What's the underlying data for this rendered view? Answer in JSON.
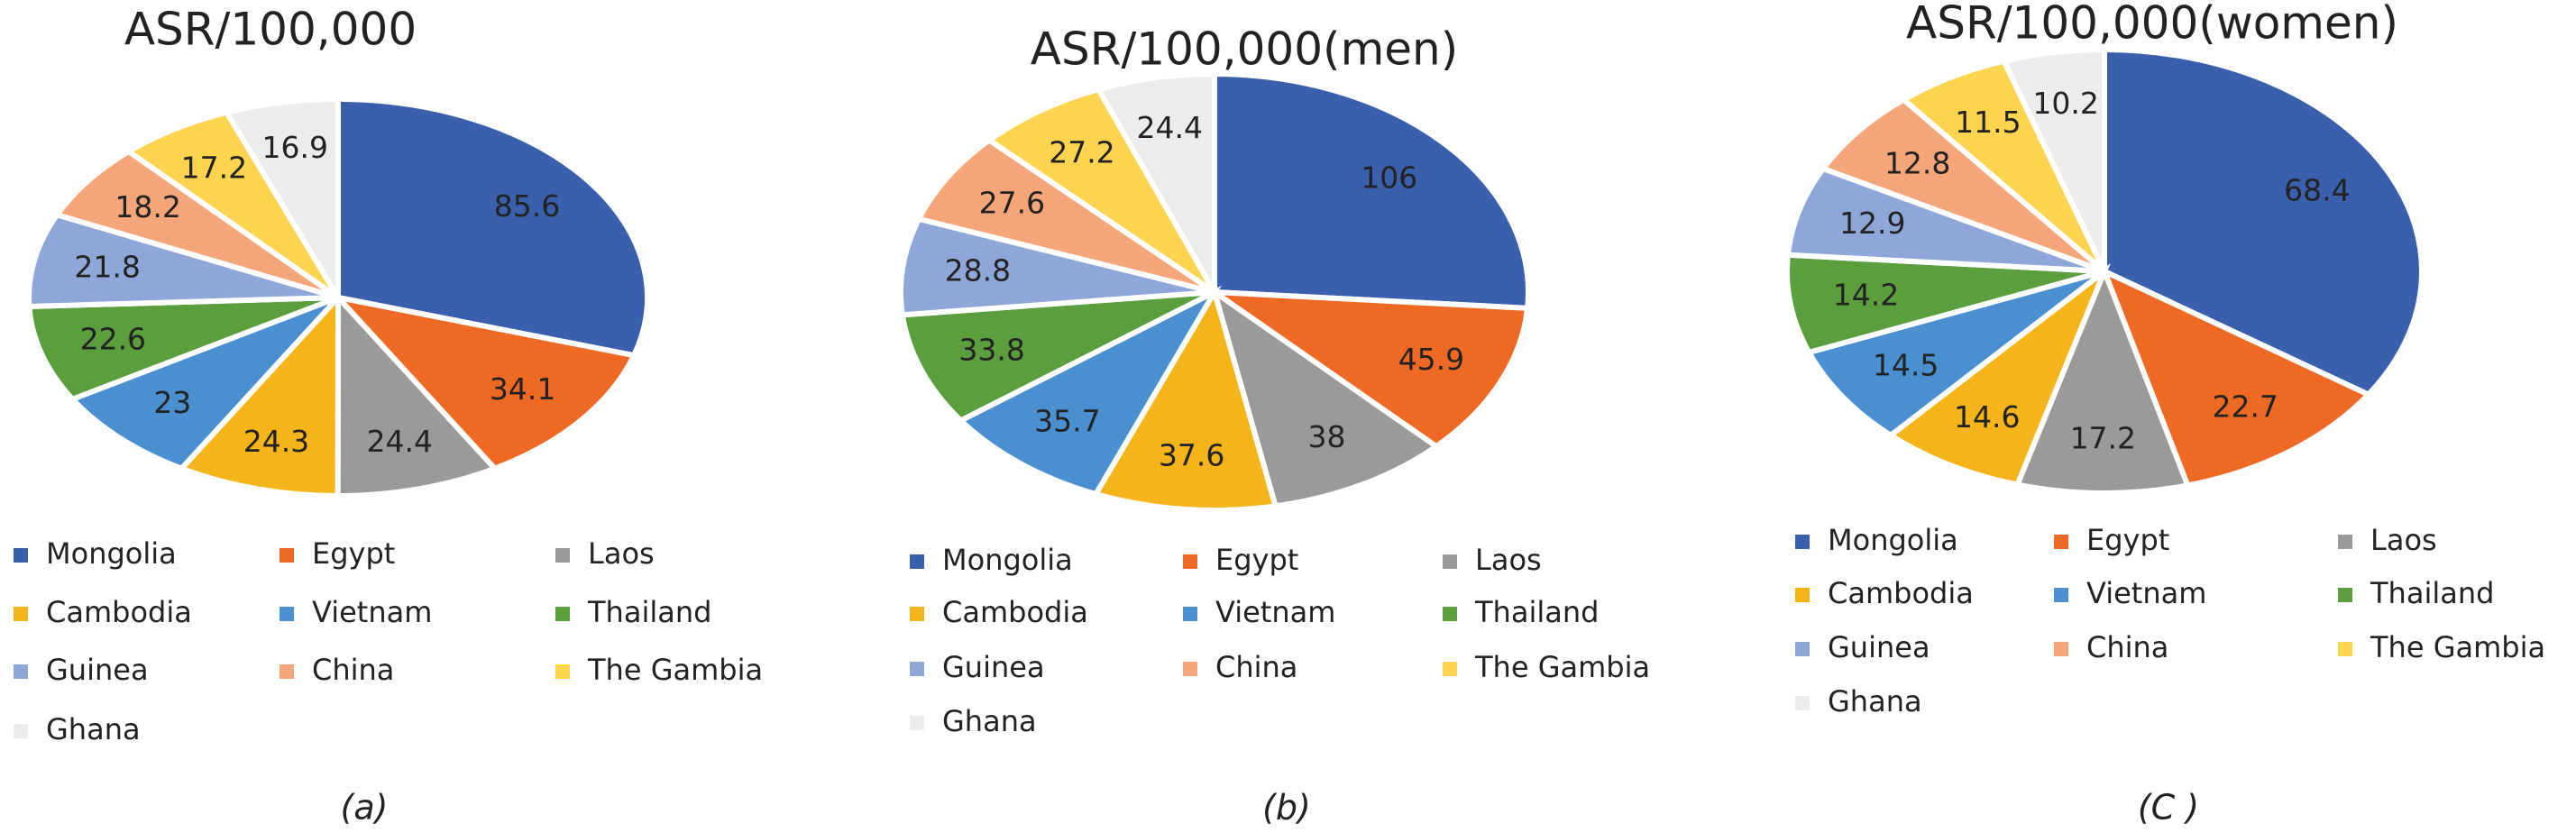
{
  "chart_data": [
    {
      "type": "pie",
      "title": "ASR/100,000",
      "caption": "(a)",
      "categories": [
        "Mongolia",
        "Egypt",
        "Laos",
        "Cambodia",
        "Vietnam",
        "Thailand",
        "Guinea",
        "China",
        "The Gambia",
        "Ghana"
      ],
      "values": [
        85.6,
        34.1,
        24.4,
        24.3,
        23,
        22.6,
        21.8,
        18.2,
        17.2,
        16.9
      ],
      "colors": [
        "#3a5fad",
        "#ee6a24",
        "#9a9a9a",
        "#f5b41a",
        "#4a8fd0",
        "#5a9e3e",
        "#8ea7d8",
        "#f4a57a",
        "#fdd450",
        "#ececec"
      ]
    },
    {
      "type": "pie",
      "title": "ASR/100,000(men)",
      "caption": "(b)",
      "categories": [
        "Mongolia",
        "Egypt",
        "Laos",
        "Cambodia",
        "Vietnam",
        "Thailand",
        "Guinea",
        "China",
        "The Gambia",
        "Ghana"
      ],
      "values": [
        106,
        45.9,
        38,
        37.6,
        35.7,
        33.8,
        28.8,
        27.6,
        27.2,
        24.4
      ],
      "colors": [
        "#3a5fad",
        "#ee6a24",
        "#9a9a9a",
        "#f5b41a",
        "#4a8fd0",
        "#5a9e3e",
        "#8ea7d8",
        "#f4a57a",
        "#fdd450",
        "#ececec"
      ]
    },
    {
      "type": "pie",
      "title": "ASR/100,000(women)",
      "caption": "(C )",
      "categories": [
        "Mongolia",
        "Egypt",
        "Laos",
        "Cambodia",
        "Vietnam",
        "Thailand",
        "Guinea",
        "China",
        "The Gambia",
        "Ghana"
      ],
      "values": [
        68.4,
        22.7,
        17.2,
        14.6,
        14.5,
        14.2,
        12.9,
        12.8,
        11.5,
        10.2
      ],
      "colors": [
        "#3a5fad",
        "#ee6a24",
        "#9a9a9a",
        "#f5b41a",
        "#4a8fd0",
        "#5a9e3e",
        "#8ea7d8",
        "#f4a57a",
        "#fdd450",
        "#ececec"
      ]
    }
  ]
}
